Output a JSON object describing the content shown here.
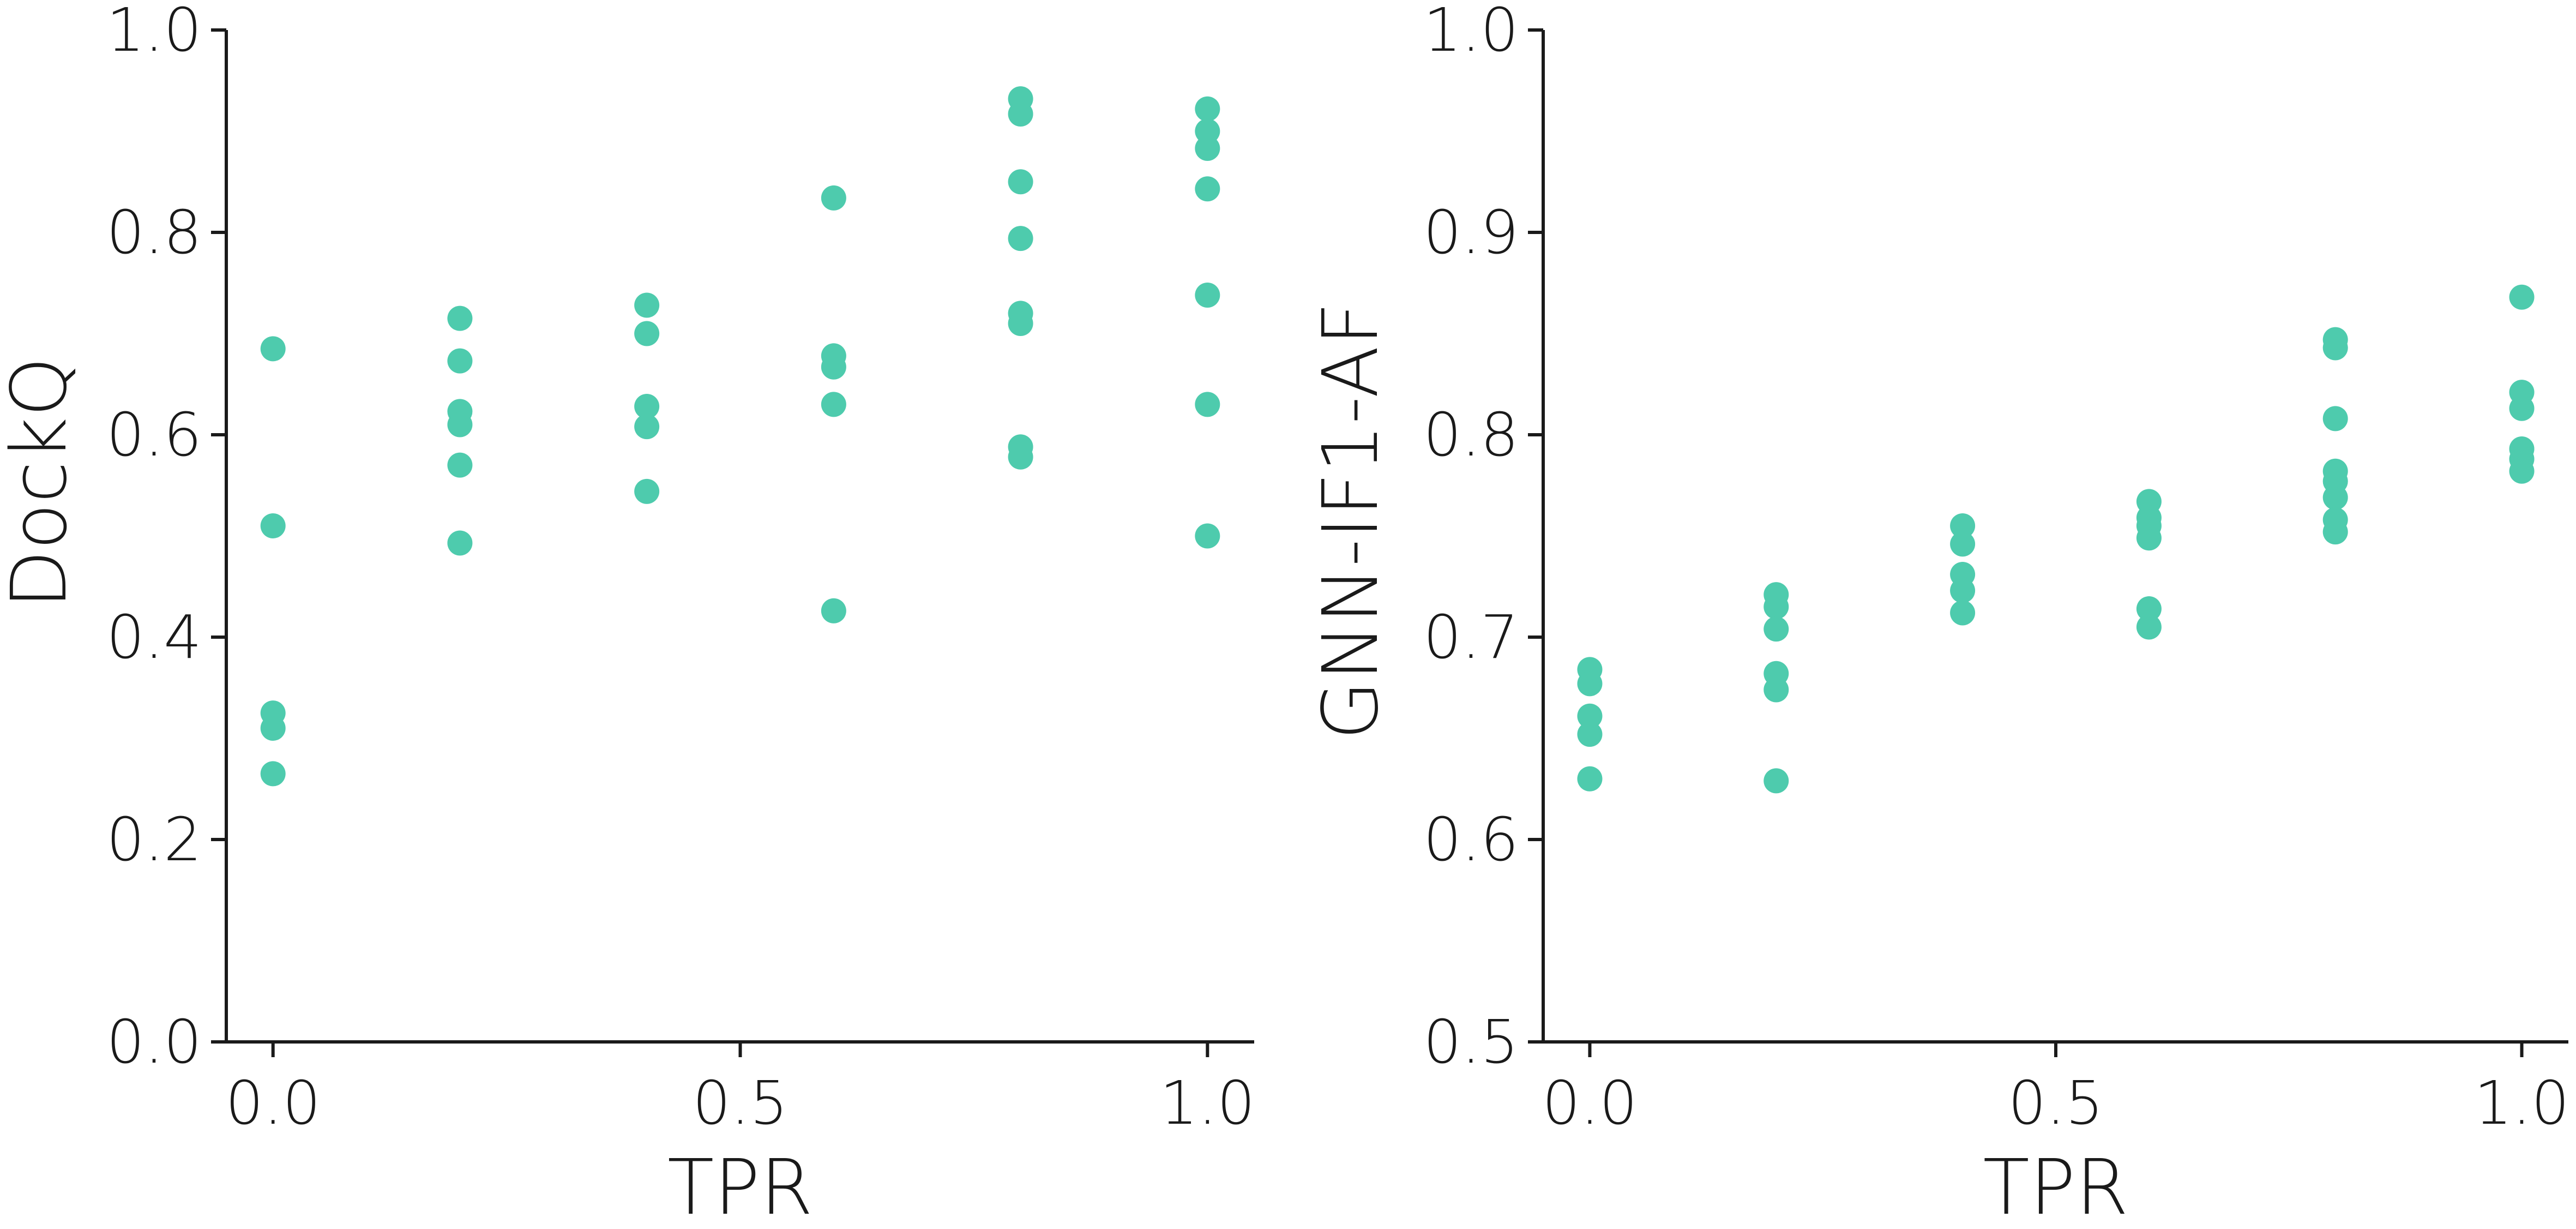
{
  "chart_data": [
    {
      "type": "scatter",
      "xlabel": "TPR",
      "ylabel": "DockQ",
      "xlim": [
        -0.05,
        1.05
      ],
      "ylim": [
        0.0,
        1.0
      ],
      "xticks": [
        0.0,
        0.5,
        1.0
      ],
      "yticks": [
        0.0,
        0.2,
        0.4,
        0.6,
        0.8,
        1.0
      ],
      "xtick_labels": [
        "0.0",
        "0.5",
        "1.0"
      ],
      "ytick_labels": [
        "0.0",
        "0.2",
        "0.4",
        "0.6",
        "0.8",
        "1.0"
      ],
      "grid": false,
      "color": "#4ecbad",
      "points": [
        {
          "x": 0.0,
          "y": 0.685
        },
        {
          "x": 0.0,
          "y": 0.51
        },
        {
          "x": 0.0,
          "y": 0.325
        },
        {
          "x": 0.0,
          "y": 0.31
        },
        {
          "x": 0.0,
          "y": 0.265
        },
        {
          "x": 0.2,
          "y": 0.715
        },
        {
          "x": 0.2,
          "y": 0.673
        },
        {
          "x": 0.2,
          "y": 0.623
        },
        {
          "x": 0.2,
          "y": 0.61
        },
        {
          "x": 0.2,
          "y": 0.57
        },
        {
          "x": 0.2,
          "y": 0.493
        },
        {
          "x": 0.4,
          "y": 0.728
        },
        {
          "x": 0.4,
          "y": 0.7
        },
        {
          "x": 0.4,
          "y": 0.628
        },
        {
          "x": 0.4,
          "y": 0.608
        },
        {
          "x": 0.4,
          "y": 0.544
        },
        {
          "x": 0.6,
          "y": 0.834
        },
        {
          "x": 0.6,
          "y": 0.678
        },
        {
          "x": 0.6,
          "y": 0.667
        },
        {
          "x": 0.6,
          "y": 0.63
        },
        {
          "x": 0.6,
          "y": 0.426
        },
        {
          "x": 0.8,
          "y": 0.932
        },
        {
          "x": 0.8,
          "y": 0.917
        },
        {
          "x": 0.8,
          "y": 0.85
        },
        {
          "x": 0.8,
          "y": 0.794
        },
        {
          "x": 0.8,
          "y": 0.72
        },
        {
          "x": 0.8,
          "y": 0.71
        },
        {
          "x": 0.8,
          "y": 0.588
        },
        {
          "x": 0.8,
          "y": 0.578
        },
        {
          "x": 1.0,
          "y": 0.922
        },
        {
          "x": 1.0,
          "y": 0.9
        },
        {
          "x": 1.0,
          "y": 0.883
        },
        {
          "x": 1.0,
          "y": 0.843
        },
        {
          "x": 1.0,
          "y": 0.738
        },
        {
          "x": 1.0,
          "y": 0.63
        },
        {
          "x": 1.0,
          "y": 0.5
        }
      ]
    },
    {
      "type": "scatter",
      "xlabel": "TPR",
      "ylabel": "GNN-IF1-AF",
      "xlim": [
        -0.05,
        1.05
      ],
      "ylim": [
        0.5,
        1.0
      ],
      "xticks": [
        0.0,
        0.5,
        1.0
      ],
      "yticks": [
        0.5,
        0.6,
        0.7,
        0.8,
        0.9,
        1.0
      ],
      "xtick_labels": [
        "0.0",
        "0.5",
        "1.0"
      ],
      "ytick_labels": [
        "0.5",
        "0.6",
        "0.7",
        "0.8",
        "0.9",
        "1.0"
      ],
      "grid": false,
      "color": "#4ecbad",
      "points": [
        {
          "x": 0.0,
          "y": 0.684
        },
        {
          "x": 0.0,
          "y": 0.677
        },
        {
          "x": 0.0,
          "y": 0.661
        },
        {
          "x": 0.0,
          "y": 0.652
        },
        {
          "x": 0.0,
          "y": 0.63
        },
        {
          "x": 0.2,
          "y": 0.721
        },
        {
          "x": 0.2,
          "y": 0.715
        },
        {
          "x": 0.2,
          "y": 0.704
        },
        {
          "x": 0.2,
          "y": 0.682
        },
        {
          "x": 0.2,
          "y": 0.674
        },
        {
          "x": 0.2,
          "y": 0.629
        },
        {
          "x": 0.4,
          "y": 0.755
        },
        {
          "x": 0.4,
          "y": 0.746
        },
        {
          "x": 0.4,
          "y": 0.731
        },
        {
          "x": 0.4,
          "y": 0.723
        },
        {
          "x": 0.4,
          "y": 0.712
        },
        {
          "x": 0.6,
          "y": 0.767
        },
        {
          "x": 0.6,
          "y": 0.759
        },
        {
          "x": 0.6,
          "y": 0.755
        },
        {
          "x": 0.6,
          "y": 0.749
        },
        {
          "x": 0.6,
          "y": 0.714
        },
        {
          "x": 0.6,
          "y": 0.705
        },
        {
          "x": 0.8,
          "y": 0.847
        },
        {
          "x": 0.8,
          "y": 0.843
        },
        {
          "x": 0.8,
          "y": 0.808
        },
        {
          "x": 0.8,
          "y": 0.782
        },
        {
          "x": 0.8,
          "y": 0.777
        },
        {
          "x": 0.8,
          "y": 0.769
        },
        {
          "x": 0.8,
          "y": 0.758
        },
        {
          "x": 0.8,
          "y": 0.752
        },
        {
          "x": 1.0,
          "y": 0.868
        },
        {
          "x": 1.0,
          "y": 0.821
        },
        {
          "x": 1.0,
          "y": 0.813
        },
        {
          "x": 1.0,
          "y": 0.793
        },
        {
          "x": 1.0,
          "y": 0.788
        },
        {
          "x": 1.0,
          "y": 0.782
        }
      ]
    }
  ]
}
